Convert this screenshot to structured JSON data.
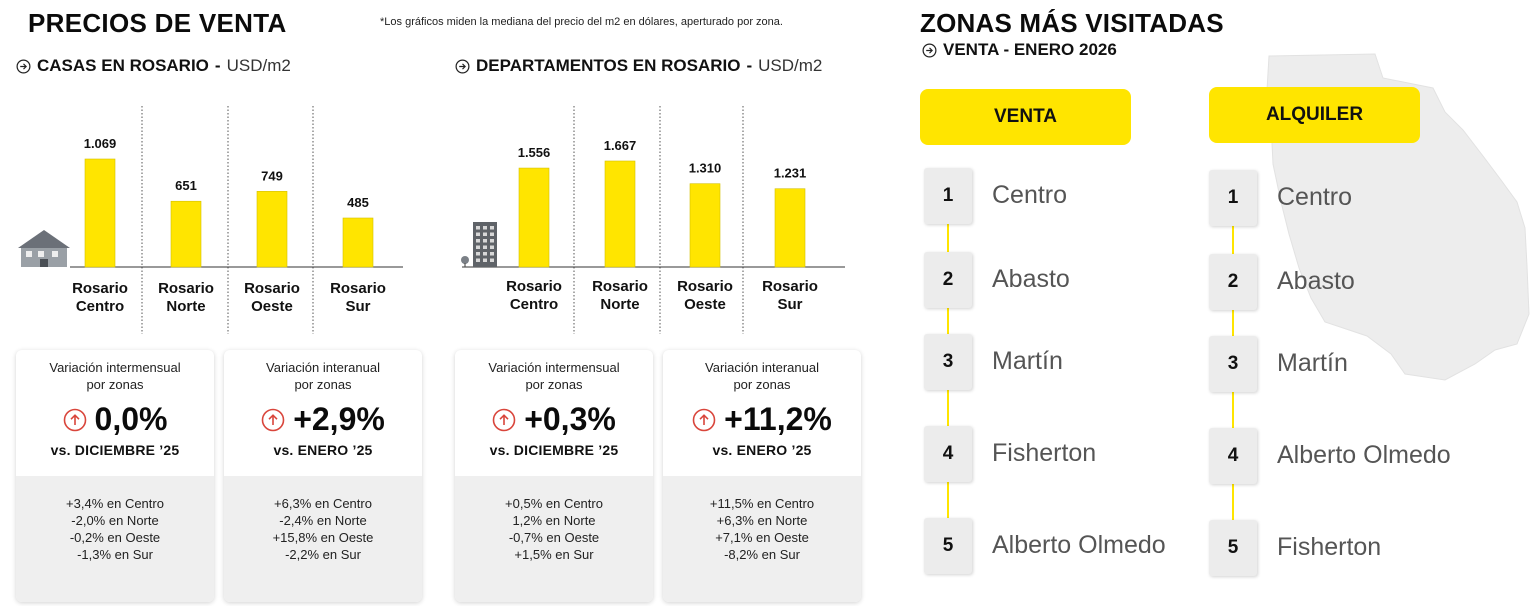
{
  "left": {
    "title": "PRECIOS DE VENTA",
    "footnote": "*Los gráficos miden  la mediana del precio del m2 en dólares, aperturado por zona."
  },
  "chart_data": [
    {
      "type": "bar",
      "title": "CASAS EN ROSARIO",
      "unit": "USD/m2",
      "categories": [
        [
          "Rosario",
          "Centro"
        ],
        [
          "Rosario",
          "Norte"
        ],
        [
          "Rosario",
          "Oeste"
        ],
        [
          "Rosario",
          "Sur"
        ]
      ],
      "values": [
        1069,
        651,
        749,
        485
      ],
      "value_labels": [
        "1.069",
        "651",
        "749",
        "485"
      ],
      "bar_color": "#ffe500",
      "icon": "house-icon"
    },
    {
      "type": "bar",
      "title": "DEPARTAMENTOS EN ROSARIO",
      "unit": "USD/m2",
      "categories": [
        [
          "Rosario",
          "Centro"
        ],
        [
          "Rosario",
          "Norte"
        ],
        [
          "Rosario",
          "Oeste"
        ],
        [
          "Rosario",
          "Sur"
        ]
      ],
      "values": [
        1556,
        1667,
        1310,
        1231
      ],
      "value_labels": [
        "1.556",
        "1.667",
        "1.310",
        "1.231"
      ],
      "bar_color": "#ffe500",
      "icon": "building-icon"
    }
  ],
  "cards": [
    {
      "label1": "Variación intermensual",
      "label2": "por zonas",
      "value": "0,0%",
      "vs": "vs. DICIEMBRE  ’25",
      "details": [
        "+3,4% en Centro",
        "-2,0% en Norte",
        "-0,2% en Oeste",
        "-1,3% en Sur"
      ]
    },
    {
      "label1": "Variación interanual",
      "label2": "por zonas",
      "value": "+2,9%",
      "vs": "vs. ENERO ’25",
      "details": [
        "+6,3% en Centro",
        "-2,4% en Norte",
        "+15,8% en Oeste",
        "-2,2% en Sur"
      ]
    },
    {
      "label1": "Variación intermensual",
      "label2": "por zonas",
      "value": "+0,3%",
      "vs": "vs. DICIEMBRE ’25",
      "details": [
        "+0,5% en Centro",
        "1,2% en Norte",
        "-0,7% en Oeste",
        "+1,5% en Sur"
      ]
    },
    {
      "label1": "Variación interanual",
      "label2": "por zonas",
      "value": "+11,2%",
      "vs": "vs. ENERO ’25",
      "details": [
        "+11,5% en Centro",
        "+6,3%  en Norte",
        "+7,1% en Oeste",
        "-8,2% en Sur"
      ]
    }
  ],
  "right": {
    "title": "ZONAS MÁS VISITADAS",
    "subtitle": "VENTA - ENERO 2026",
    "accent": "#ffe500",
    "columns": [
      {
        "label": "VENTA",
        "ranks": [
          "1",
          "2",
          "3",
          "4",
          "5"
        ],
        "zones": [
          "Centro",
          "Abasto",
          "Martín",
          "Fisherton",
          "Alberto Olmedo"
        ]
      },
      {
        "label": "ALQUILER",
        "ranks": [
          "1",
          "2",
          "3",
          "4",
          "5"
        ],
        "zones": [
          "Centro",
          "Abasto",
          "Martín",
          "Alberto Olmedo",
          "Fisherton"
        ]
      }
    ]
  }
}
